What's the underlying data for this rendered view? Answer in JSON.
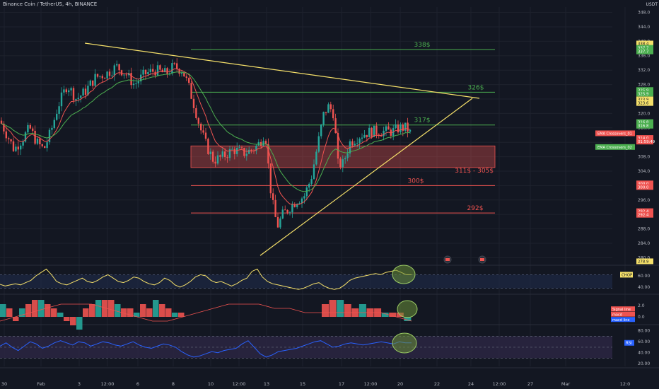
{
  "header": {
    "symbol": "Binance Coin / TetherUS, 4h, BINANCE",
    "quote": "USDT"
  },
  "colors": {
    "background": "#131722",
    "grid": "#1e222d",
    "bull": "#26a69a",
    "bear": "#ef5350",
    "ema_fast": "#ef5350",
    "ema_slow": "#4caf50",
    "trendline": "#f5e06a",
    "green_level": "#4caf50",
    "red_level": "#ef5350",
    "chop": "#f5e06a",
    "rsi": "#2962ff",
    "panel_band": "#1e2a44",
    "rsi_band": "#2a2540",
    "highlight": "#6a8f38"
  },
  "chart_data": [
    {
      "type": "candlestick",
      "title": "",
      "y_axis_ticks": [
        348.0,
        344.0,
        340.0,
        336.0,
        332.0,
        328.0,
        324.0,
        320.0,
        316.0,
        312.0,
        308.0,
        304.0,
        300.0,
        296.0,
        292.0,
        288.0,
        284.0,
        280.0
      ],
      "ylim": [
        278.5,
        349.5
      ],
      "x_axis_ticks": [
        "30",
        "Feb",
        "3",
        "12:00",
        "6",
        "8",
        "10",
        "12:00",
        "13",
        "15",
        "17",
        "12:00",
        "20",
        "22",
        "24",
        "12:00",
        "27",
        "Mar",
        "12:0"
      ],
      "approx_price_path": [
        {
          "t": 0,
          "price": 318
        },
        {
          "t": 10,
          "price": 314
        },
        {
          "t": 20,
          "price": 310
        },
        {
          "t": 32,
          "price": 313
        },
        {
          "t": 42,
          "price": 316
        },
        {
          "t": 52,
          "price": 312
        },
        {
          "t": 62,
          "price": 310
        },
        {
          "t": 72,
          "price": 315
        },
        {
          "t": 82,
          "price": 322
        },
        {
          "t": 95,
          "price": 328
        },
        {
          "t": 108,
          "price": 324
        },
        {
          "t": 120,
          "price": 326
        },
        {
          "t": 135,
          "price": 330
        },
        {
          "t": 150,
          "price": 331
        },
        {
          "t": 165,
          "price": 333
        },
        {
          "t": 178,
          "price": 331
        },
        {
          "t": 190,
          "price": 328
        },
        {
          "t": 205,
          "price": 331
        },
        {
          "t": 220,
          "price": 332
        },
        {
          "t": 235,
          "price": 331
        },
        {
          "t": 245,
          "price": 333
        },
        {
          "t": 258,
          "price": 332
        },
        {
          "t": 266,
          "price": 328
        },
        {
          "t": 275,
          "price": 322
        },
        {
          "t": 283,
          "price": 316
        },
        {
          "t": 292,
          "price": 311
        },
        {
          "t": 302,
          "price": 307
        },
        {
          "t": 315,
          "price": 308
        },
        {
          "t": 330,
          "price": 310
        },
        {
          "t": 345,
          "price": 309
        },
        {
          "t": 358,
          "price": 310
        },
        {
          "t": 368,
          "price": 312
        },
        {
          "t": 375,
          "price": 315
        },
        {
          "t": 382,
          "price": 300
        },
        {
          "t": 388,
          "price": 292
        },
        {
          "t": 393,
          "price": 289
        },
        {
          "t": 400,
          "price": 292
        },
        {
          "t": 410,
          "price": 294
        },
        {
          "t": 420,
          "price": 296
        },
        {
          "t": 430,
          "price": 297
        },
        {
          "t": 440,
          "price": 302
        },
        {
          "t": 450,
          "price": 312
        },
        {
          "t": 458,
          "price": 320
        },
        {
          "t": 465,
          "price": 322
        },
        {
          "t": 472,
          "price": 320
        },
        {
          "t": 478,
          "price": 306
        },
        {
          "t": 485,
          "price": 306
        },
        {
          "t": 495,
          "price": 312
        },
        {
          "t": 510,
          "price": 314
        },
        {
          "t": 525,
          "price": 315
        },
        {
          "t": 540,
          "price": 315
        },
        {
          "t": 555,
          "price": 315
        },
        {
          "t": 565,
          "price": 316
        },
        {
          "t": 575,
          "price": 316
        },
        {
          "t": 582,
          "price": 314
        }
      ],
      "support_resistance": [
        {
          "label": "338$",
          "price": 337.7,
          "kind": "green"
        },
        {
          "label": "326$",
          "price": 325.9,
          "kind": "green"
        },
        {
          "label": "317$",
          "price": 316.8,
          "kind": "green"
        },
        {
          "label": "300$",
          "price": 300.0,
          "kind": "red"
        },
        {
          "label": "292$",
          "price": 292.4,
          "kind": "red"
        }
      ],
      "zone": {
        "label": "311$ - 305$",
        "top": 311,
        "bottom": 305
      },
      "trendlines": [
        {
          "name": "descending",
          "from": {
            "t": 120,
            "price": 339.5
          },
          "to": {
            "t": 678,
            "price": 324.2
          }
        },
        {
          "name": "ascending",
          "from": {
            "t": 368,
            "price": 280.6
          },
          "to": {
            "t": 668,
            "price": 324.2
          }
        }
      ],
      "ema_legend": [
        {
          "label": "EMA Crossovers_01",
          "price": 314.5,
          "kind": "red"
        },
        {
          "label": "EMA Crossovers_02",
          "price": 310.7,
          "kind": "green"
        }
      ],
      "axis_labels": [
        {
          "text": "338.4",
          "price": 339.4,
          "kind": "yellow"
        },
        {
          "text": "337.7",
          "price": 338.2,
          "kind": "green"
        },
        {
          "text": "337.7",
          "price": 337.2,
          "kind": "green"
        },
        {
          "text": "325.9",
          "price": 326.5,
          "kind": "green"
        },
        {
          "text": "325.9",
          "price": 325.5,
          "kind": "green"
        },
        {
          "text": "323.9",
          "price": 323.9,
          "kind": "yellow"
        },
        {
          "text": "323.6",
          "price": 322.9,
          "kind": "yellow"
        },
        {
          "text": "316.8",
          "price": 317.6,
          "kind": "green"
        },
        {
          "text": "316.8",
          "price": 316.6,
          "kind": "green"
        },
        {
          "text": "314.0",
          "price": 313.2,
          "kind": "red"
        },
        {
          "text": "01:59:49",
          "price": 312.2,
          "kind": "red"
        },
        {
          "text": "300.0",
          "price": 300.6,
          "kind": "red"
        },
        {
          "text": "300.0",
          "price": 299.6,
          "kind": "red"
        },
        {
          "text": "292.4",
          "price": 292.9,
          "kind": "red"
        },
        {
          "text": "292.4",
          "price": 291.9,
          "kind": "red"
        },
        {
          "text": "278.9",
          "price": 279.0,
          "kind": "yellow"
        }
      ]
    },
    {
      "type": "line",
      "name": "CHOP",
      "y_axis_ticks": [
        60.0,
        40.0
      ],
      "ylim": [
        30,
        75
      ],
      "band": [
        38.2,
        61.8
      ],
      "approx_values": [
        45,
        42,
        44,
        46,
        44,
        48,
        52,
        60,
        66,
        72,
        62,
        50,
        46,
        44,
        48,
        52,
        56,
        50,
        48,
        52,
        58,
        62,
        56,
        50,
        48,
        52,
        58,
        56,
        50,
        46,
        44,
        48,
        56,
        52,
        44,
        40,
        44,
        50,
        58,
        62,
        60,
        52,
        48,
        50,
        46,
        42,
        46,
        52,
        56,
        68,
        72,
        58,
        50,
        46,
        44,
        42,
        40,
        38,
        36,
        38,
        42,
        46,
        48,
        42,
        38,
        36,
        38,
        44,
        52,
        56,
        58,
        60,
        62,
        64,
        62,
        66,
        68,
        70,
        66,
        62,
        62
      ]
    },
    {
      "type": "bar",
      "name": "MACD",
      "y_axis_ticks": [
        2.0,
        0.0
      ],
      "legend": [
        "Signal line",
        "macd",
        "macd line"
      ],
      "approx_histogram": [
        3,
        2,
        -1,
        2,
        3,
        4,
        4,
        3,
        2,
        1,
        -1,
        -2,
        -3,
        2,
        3,
        4,
        4,
        4,
        3,
        2,
        2,
        1,
        3,
        2,
        4,
        3,
        2,
        1,
        1,
        0,
        0,
        0,
        0,
        0,
        0,
        0,
        0,
        0,
        0,
        0,
        0,
        0,
        0,
        3,
        4,
        4,
        3,
        2,
        3,
        2,
        2,
        1,
        1,
        1,
        -1
      ],
      "approx_signal": [
        -1,
        0,
        1,
        2,
        3,
        3,
        3,
        2,
        1,
        0,
        -1,
        -1,
        0,
        1,
        2,
        3,
        3,
        3,
        2,
        2,
        1,
        1,
        1,
        1,
        1,
        1,
        0,
        -1
      ]
    },
    {
      "type": "line",
      "name": "RSI",
      "y_axis_ticks": [
        80.0,
        60.0,
        40.0,
        20.0
      ],
      "ylim": [
        15,
        90
      ],
      "band": [
        30,
        70
      ],
      "approx_values": [
        52,
        58,
        50,
        44,
        52,
        60,
        56,
        48,
        52,
        58,
        62,
        58,
        54,
        60,
        58,
        52,
        56,
        60,
        58,
        54,
        52,
        56,
        60,
        54,
        50,
        48,
        52,
        56,
        54,
        50,
        42,
        36,
        32,
        34,
        38,
        42,
        40,
        44,
        46,
        48,
        56,
        62,
        50,
        38,
        32,
        36,
        42,
        44,
        46,
        48,
        52,
        56,
        60,
        62,
        56,
        50,
        52,
        56,
        58,
        56,
        54,
        56,
        58,
        60,
        58,
        56,
        60,
        58,
        58
      ]
    }
  ]
}
